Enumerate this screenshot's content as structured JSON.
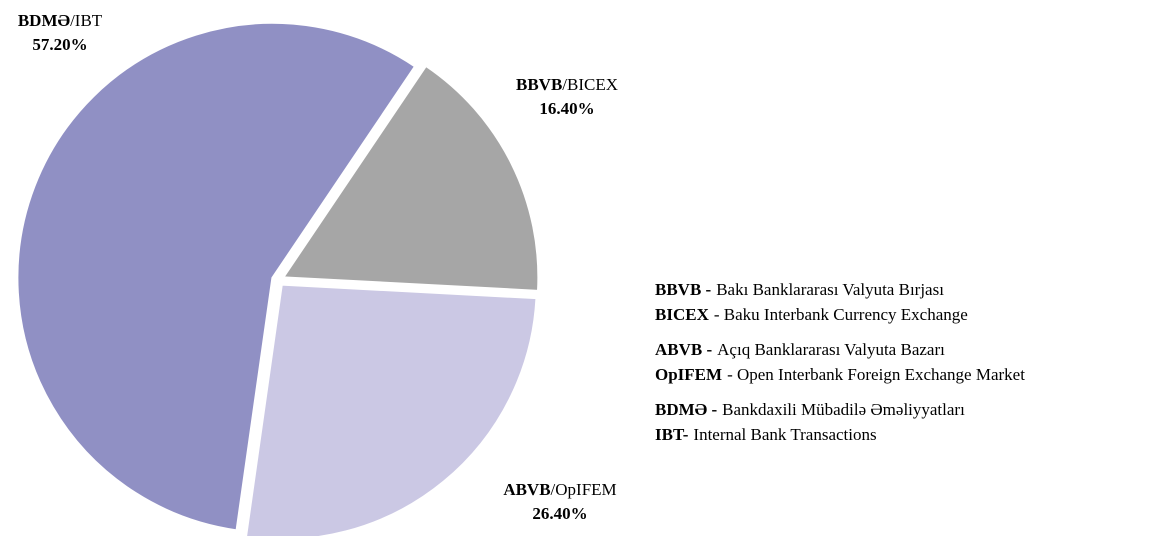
{
  "chart_data": {
    "type": "pie",
    "categories": [
      "BBVB/BICEX",
      "ABVB/OpIFEM",
      "BDMƏ/IBT"
    ],
    "values": [
      16.4,
      26.4,
      57.2
    ],
    "value_labels": [
      "16.40%",
      "26.40%",
      "57.20%"
    ],
    "colors": [
      "#a6a6a6",
      "#cbc8e4",
      "#9090c4"
    ],
    "notes": [
      {
        "term": "BBVB -",
        "definition": "Bakı Banklararası Valyuta Bırjası"
      },
      {
        "term": "BICEX",
        "definition": "- Baku Interbank Currency Exchange"
      },
      {
        "term": "ABVB -",
        "definition": "Açıq Banklararası Valyuta Bazarı"
      },
      {
        "term": "OpIFEM",
        "definition": "- Open Interbank Foreign Exchange Market"
      },
      {
        "term": "BDMƏ -",
        "definition": "Bankdaxili Mübadilə Əməliyyatları"
      },
      {
        "term": "IBT-",
        "definition": "Internal Bank Transactions"
      }
    ]
  }
}
